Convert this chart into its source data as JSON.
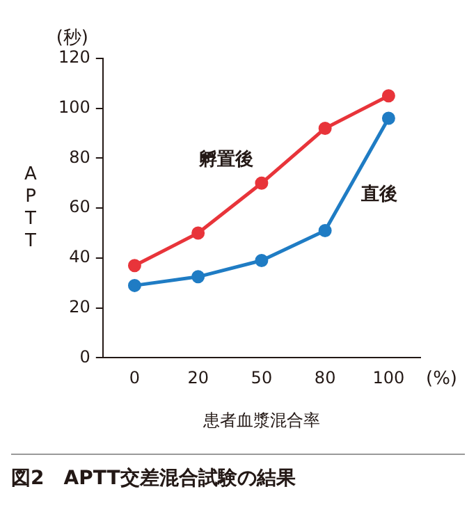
{
  "chart_data": {
    "type": "line",
    "title": "図2　APTT交差混合試験の結果",
    "xlabel": "患者血漿混合率",
    "ylabel": "APTT",
    "annotations": [
      "(秒)",
      "(%)"
    ],
    "categories": [
      "0",
      "20",
      "50",
      "80",
      "100"
    ],
    "series": [
      {
        "name": "孵置後",
        "color": "#e8343a",
        "values": [
          37,
          50,
          70,
          92,
          105
        ]
      },
      {
        "name": "直後",
        "color": "#1f7cc4",
        "values": [
          29,
          32.5,
          39,
          51,
          96
        ]
      }
    ],
    "ylim": [
      0,
      120
    ],
    "yticks": [
      0,
      20,
      40,
      60,
      80,
      100,
      120
    ],
    "grid": false,
    "legend": false,
    "marker": "circle",
    "line_style": "solid"
  }
}
